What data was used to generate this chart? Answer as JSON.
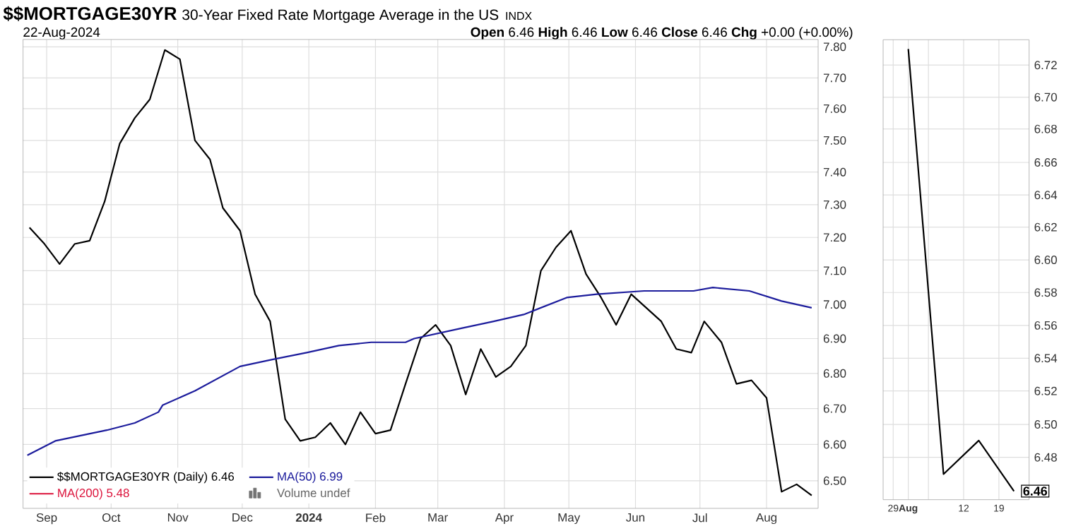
{
  "chart_data": [
    {
      "type": "line",
      "title": "$$MORTGAGE30YR",
      "subtitle": "30-Year Fixed Rate Mortgage Average in the US",
      "annotations": [
        "INDX",
        "22-Aug-2024",
        "**Open** 6.46  **High** 6.46  **Low** 6.46  **Close** 6.46  **Chg** +0.00 (+0.00%)",
        "Volume undef"
      ],
      "xlim": [
        "2023-08-21",
        "2024-08-25"
      ],
      "xticks": [
        {
          "value": "2023-09-01",
          "label": "Sep"
        },
        {
          "value": "2023-10-01",
          "label": "Oct"
        },
        {
          "value": "2023-11-01",
          "label": "Nov"
        },
        {
          "value": "2023-12-01",
          "label": "Dec"
        },
        {
          "value": "2024-01-01",
          "label": "**2024**"
        },
        {
          "value": "2024-02-01",
          "label": "Feb"
        },
        {
          "value": "2024-03-01",
          "label": "Mar"
        },
        {
          "value": "2024-04-01",
          "label": "Apr"
        },
        {
          "value": "2024-05-01",
          "label": "May"
        },
        {
          "value": "2024-06-01",
          "label": "Jun"
        },
        {
          "value": "2024-07-01",
          "label": "Jul"
        },
        {
          "value": "2024-08-01",
          "label": "Aug"
        }
      ],
      "ylim": [
        6.425,
        7.825
      ],
      "yticks": [
        {
          "value": 6.5,
          "label": "6.50"
        },
        {
          "value": 6.6,
          "label": "6.60"
        },
        {
          "value": 6.7,
          "label": "6.70"
        },
        {
          "value": 6.8,
          "label": "6.80"
        },
        {
          "value": 6.9,
          "label": "6.90"
        },
        {
          "value": 7.0,
          "label": "7.00"
        },
        {
          "value": 7.1,
          "label": "7.10"
        },
        {
          "value": 7.2,
          "label": "7.20"
        },
        {
          "value": 7.3,
          "label": "7.30"
        },
        {
          "value": 7.4,
          "label": "7.40"
        },
        {
          "value": 7.5,
          "label": "7.50"
        },
        {
          "value": 7.6,
          "label": "7.60"
        },
        {
          "value": 7.7,
          "label": "7.70"
        },
        {
          "value": 7.8,
          "label": "7.80"
        }
      ],
      "log": true,
      "grid": true,
      "legend": "bottom left",
      "series": [
        {
          "name": "$$MORTGAGE30YR (Daily) 6.46",
          "color": "#000000",
          "x": [
            "2023-08-24",
            "2023-08-31",
            "2023-09-07",
            "2023-09-14",
            "2023-09-21",
            "2023-09-28",
            "2023-10-05",
            "2023-10-12",
            "2023-10-19",
            "2023-10-26",
            "2023-11-02",
            "2023-11-09",
            "2023-11-16",
            "2023-11-22",
            "2023-11-30",
            "2023-12-07",
            "2023-12-14",
            "2023-12-21",
            "2023-12-28",
            "2024-01-04",
            "2024-01-11",
            "2024-01-18",
            "2024-01-25",
            "2024-02-01",
            "2024-02-08",
            "2024-02-15",
            "2024-02-22",
            "2024-02-29",
            "2024-03-07",
            "2024-03-14",
            "2024-03-21",
            "2024-03-28",
            "2024-04-04",
            "2024-04-11",
            "2024-04-18",
            "2024-04-25",
            "2024-05-02",
            "2024-05-09",
            "2024-05-16",
            "2024-05-23",
            "2024-05-30",
            "2024-06-06",
            "2024-06-13",
            "2024-06-20",
            "2024-06-27",
            "2024-07-03",
            "2024-07-11",
            "2024-07-18",
            "2024-07-25",
            "2024-08-01",
            "2024-08-08",
            "2024-08-15",
            "2024-08-22"
          ],
          "values": [
            7.23,
            7.18,
            7.12,
            7.18,
            7.19,
            7.31,
            7.49,
            7.57,
            7.63,
            7.79,
            7.76,
            7.5,
            7.44,
            7.29,
            7.22,
            7.03,
            6.95,
            6.67,
            6.61,
            6.62,
            6.66,
            6.6,
            6.69,
            6.63,
            6.64,
            6.77,
            6.9,
            6.94,
            6.88,
            6.74,
            6.87,
            6.79,
            6.82,
            6.88,
            7.1,
            7.17,
            7.22,
            7.09,
            7.02,
            6.94,
            7.03,
            6.99,
            6.95,
            6.87,
            6.86,
            6.95,
            6.89,
            6.77,
            6.78,
            6.73,
            6.47,
            6.49,
            6.46
          ]
        },
        {
          "name": "MA(50) 6.99",
          "color": "#1c1c9c",
          "x": [
            "2023-08-23",
            "2023-09-05",
            "2023-09-29",
            "2023-10-12",
            "2023-10-23",
            "2023-10-25",
            "2023-11-09",
            "2023-11-30",
            "2023-12-15",
            "2023-12-31",
            "2024-01-15",
            "2024-01-30",
            "2024-02-15",
            "2024-02-19",
            "2024-03-12",
            "2024-03-27",
            "2024-04-10",
            "2024-04-30",
            "2024-05-14",
            "2024-06-05",
            "2024-06-28",
            "2024-07-07",
            "2024-07-24",
            "2024-08-08",
            "2024-08-22"
          ],
          "values": [
            6.57,
            6.61,
            6.64,
            6.66,
            6.69,
            6.71,
            6.75,
            6.82,
            6.84,
            6.86,
            6.88,
            6.89,
            6.89,
            6.9,
            6.93,
            6.95,
            6.97,
            7.02,
            7.03,
            7.04,
            7.04,
            7.05,
            7.04,
            7.01,
            6.99
          ]
        },
        {
          "name": "MA(200) 5.48",
          "color": "#dc143c"
        }
      ]
    },
    {
      "type": "line",
      "xlim": [
        "2024-07-27",
        "2024-08-25"
      ],
      "xticks": [
        {
          "value": "2024-07-29",
          "label": "29"
        },
        {
          "value": "2024-08-01",
          "label": "**Aug**"
        },
        {
          "value": "2024-08-05",
          "label": null
        },
        {
          "value": "2024-08-12",
          "label": "12"
        },
        {
          "value": "2024-08-19",
          "label": "19"
        }
      ],
      "ylim": [
        6.455,
        6.736
      ],
      "yticks": [
        {
          "value": 6.48,
          "label": "6.48"
        },
        {
          "value": 6.5,
          "label": "6.50"
        },
        {
          "value": 6.52,
          "label": "6.52"
        },
        {
          "value": 6.54,
          "label": "6.54"
        },
        {
          "value": 6.56,
          "label": "6.56"
        },
        {
          "value": 6.58,
          "label": "6.58"
        },
        {
          "value": 6.6,
          "label": "6.60"
        },
        {
          "value": 6.62,
          "label": "6.62"
        },
        {
          "value": 6.64,
          "label": "6.64"
        },
        {
          "value": 6.66,
          "label": "6.66"
        },
        {
          "value": 6.68,
          "label": "6.68"
        },
        {
          "value": 6.7,
          "label": "6.70"
        },
        {
          "value": 6.72,
          "label": "6.72"
        }
      ],
      "log": true,
      "grid": true,
      "series": [
        {
          "color": "#000000",
          "x": [
            "2024-08-01",
            "2024-08-08",
            "2024-08-15",
            "2024-08-22"
          ],
          "values": [
            6.73,
            6.47,
            6.49,
            6.46
          ],
          "value_labels": [
            null,
            null,
            null,
            "6.46"
          ]
        }
      ]
    }
  ]
}
